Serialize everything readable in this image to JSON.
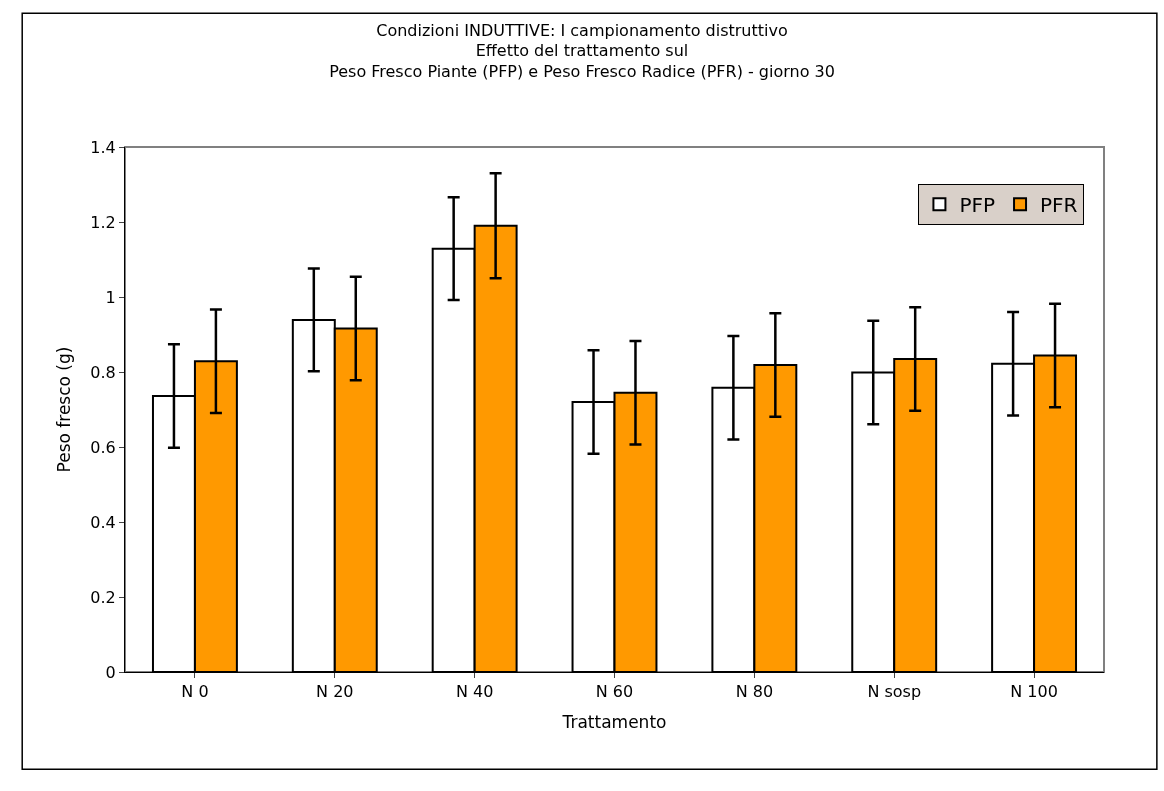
{
  "chart_data": {
    "type": "bar",
    "title": "Condizioni INDUTTIVE: I campionamento distruttivo\nEffetto del trattamento sul\nPeso Fresco Piante (PFP) e Peso Fresco Radice (PFR) - giorno 30",
    "xlabel": "Trattamento",
    "ylabel": "Peso fresco (g)",
    "categories": [
      "N 0",
      "N 20",
      "N 40",
      "N 60",
      "N 80",
      "N sosp",
      "N 100"
    ],
    "series": [
      {
        "name": "PFP",
        "color": "#ffffff",
        "values": [
          0.736,
          0.939,
          1.129,
          0.72,
          0.758,
          0.799,
          0.822
        ],
        "errors": [
          0.138,
          0.137,
          0.137,
          0.138,
          0.138,
          0.138,
          0.138
        ]
      },
      {
        "name": "PFR",
        "color": "#ff9900",
        "values": [
          0.829,
          0.916,
          1.19,
          0.745,
          0.819,
          0.835,
          0.844
        ],
        "errors": [
          0.138,
          0.138,
          0.14,
          0.138,
          0.138,
          0.138,
          0.138
        ]
      }
    ],
    "ylim": [
      0,
      1.4
    ],
    "yticks": [
      0,
      0.2,
      0.4,
      0.6,
      0.8,
      1,
      1.2,
      1.4
    ],
    "grid": false,
    "legend": "top right"
  }
}
